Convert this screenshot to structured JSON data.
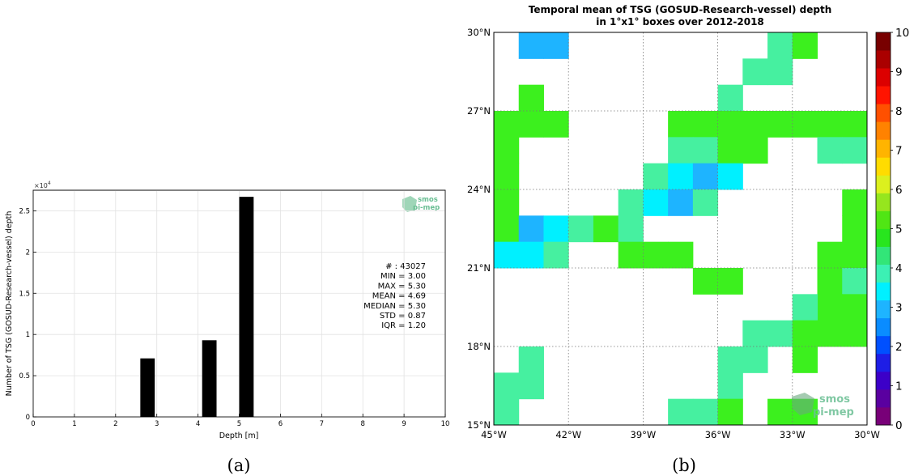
{
  "caption_a": "(a)",
  "caption_b": "(b)",
  "logo": {
    "line1": "smos",
    "line2": "pi-mep"
  },
  "chart_data": [
    {
      "type": "bar",
      "title": "",
      "xlabel": "Depth [m]",
      "ylabel": "Number of TSG (GOSUD-Research-vessel) depth",
      "y_exponent_label": "×10",
      "y_exponent": "4",
      "xlim": [
        0,
        10
      ],
      "ylim": [
        0,
        2.75
      ],
      "x_ticks": [
        "0",
        "1",
        "2",
        "3",
        "4",
        "5",
        "6",
        "7",
        "8",
        "9",
        "10"
      ],
      "y_ticks": [
        "0",
        "0.5",
        "1",
        "1.5",
        "2",
        "2.5"
      ],
      "grid": true,
      "bar_color": "#000000",
      "bars": [
        {
          "x_left": 2.6,
          "x_right": 2.95,
          "value": 0.71
        },
        {
          "x_left": 4.1,
          "x_right": 4.45,
          "value": 0.93
        },
        {
          "x_left": 5.0,
          "x_right": 5.35,
          "value": 2.67
        }
      ],
      "stats": [
        "# : 43027",
        "MIN = 3.00",
        "MAX =  5.30",
        "MEAN = 4.69",
        "MEDIAN = 5.30",
        "STD = 0.87",
        "IQR = 1.20"
      ]
    },
    {
      "type": "heatmap",
      "title": "Temporal mean of TSG (GOSUD-Research-vessel) depth",
      "subtitle": "in 1°x1° boxes over 2012-2018",
      "lon_range": [
        -45,
        -30
      ],
      "lat_range": [
        15,
        30
      ],
      "x_ticks": [
        "45°W",
        "42°W",
        "39°W",
        "36°W",
        "33°W",
        "30°W"
      ],
      "y_ticks": [
        "15°N",
        "18°N",
        "21°N",
        "24°N",
        "27°N",
        "30°N"
      ],
      "grid": "dotted",
      "colorbar": {
        "range": [
          0,
          10
        ],
        "ticks": [
          "0",
          "1",
          "2",
          "3",
          "4",
          "5",
          "6",
          "7",
          "8",
          "9",
          "10"
        ],
        "colors": [
          "#780078",
          "#5a00a0",
          "#3c00c8",
          "#1e1ee6",
          "#0050ff",
          "#0a8cff",
          "#1eb4ff",
          "#00f0ff",
          "#3cf0b4",
          "#32e678",
          "#28e61e",
          "#50e614",
          "#96e61e",
          "#dcf01e",
          "#ffdc00",
          "#ffb400",
          "#ff8200",
          "#ff5000",
          "#ff1400",
          "#dc0000",
          "#aa0000",
          "#780000"
        ]
      },
      "color_classes": {
        "a": "#46f0a0",
        "g": "#3cf01e",
        "c": "#00f0ff",
        "b": "#1eb4ff"
      },
      "cells": [
        {
          "lon": -44,
          "lat": 29,
          "c": "b"
        },
        {
          "lon": -43,
          "lat": 29,
          "c": "b"
        },
        {
          "lon": -34,
          "lat": 29,
          "c": "a"
        },
        {
          "lon": -33,
          "lat": 29,
          "c": "g"
        },
        {
          "lon": -35,
          "lat": 28,
          "c": "a"
        },
        {
          "lon": -34,
          "lat": 28,
          "c": "a"
        },
        {
          "lon": -44,
          "lat": 27,
          "c": "g"
        },
        {
          "lon": -36,
          "lat": 27,
          "c": "a"
        },
        {
          "lon": -45,
          "lat": 26,
          "c": "g"
        },
        {
          "lon": -44,
          "lat": 26,
          "c": "g"
        },
        {
          "lon": -43,
          "lat": 26,
          "c": "g"
        },
        {
          "lon": -38,
          "lat": 26,
          "c": "g"
        },
        {
          "lon": -37,
          "lat": 26,
          "c": "g"
        },
        {
          "lon": -36,
          "lat": 26,
          "c": "g"
        },
        {
          "lon": -35,
          "lat": 26,
          "c": "g"
        },
        {
          "lon": -34,
          "lat": 26,
          "c": "g"
        },
        {
          "lon": -33,
          "lat": 26,
          "c": "g"
        },
        {
          "lon": -32,
          "lat": 26,
          "c": "g"
        },
        {
          "lon": -31,
          "lat": 26,
          "c": "g"
        },
        {
          "lon": -45,
          "lat": 25,
          "c": "g"
        },
        {
          "lon": -38,
          "lat": 25,
          "c": "a"
        },
        {
          "lon": -37,
          "lat": 25,
          "c": "a"
        },
        {
          "lon": -36,
          "lat": 25,
          "c": "g"
        },
        {
          "lon": -35,
          "lat": 25,
          "c": "g"
        },
        {
          "lon": -32,
          "lat": 25,
          "c": "a"
        },
        {
          "lon": -31,
          "lat": 25,
          "c": "a"
        },
        {
          "lon": -45,
          "lat": 24,
          "c": "g"
        },
        {
          "lon": -39,
          "lat": 24,
          "c": "a"
        },
        {
          "lon": -38,
          "lat": 24,
          "c": "c"
        },
        {
          "lon": -37,
          "lat": 24,
          "c": "b"
        },
        {
          "lon": -36,
          "lat": 24,
          "c": "c"
        },
        {
          "lon": -45,
          "lat": 23,
          "c": "g"
        },
        {
          "lon": -40,
          "lat": 23,
          "c": "a"
        },
        {
          "lon": -39,
          "lat": 23,
          "c": "c"
        },
        {
          "lon": -38,
          "lat": 23,
          "c": "b"
        },
        {
          "lon": -37,
          "lat": 23,
          "c": "a"
        },
        {
          "lon": -31,
          "lat": 23,
          "c": "g"
        },
        {
          "lon": -45,
          "lat": 22,
          "c": "g"
        },
        {
          "lon": -44,
          "lat": 22,
          "c": "b"
        },
        {
          "lon": -43,
          "lat": 22,
          "c": "c"
        },
        {
          "lon": -42,
          "lat": 22,
          "c": "a"
        },
        {
          "lon": -41,
          "lat": 22,
          "c": "g"
        },
        {
          "lon": -40,
          "lat": 22,
          "c": "a"
        },
        {
          "lon": -31,
          "lat": 22,
          "c": "g"
        },
        {
          "lon": -45,
          "lat": 21,
          "c": "c"
        },
        {
          "lon": -44,
          "lat": 21,
          "c": "c"
        },
        {
          "lon": -43,
          "lat": 21,
          "c": "a"
        },
        {
          "lon": -40,
          "lat": 21,
          "c": "g"
        },
        {
          "lon": -39,
          "lat": 21,
          "c": "g"
        },
        {
          "lon": -38,
          "lat": 21,
          "c": "g"
        },
        {
          "lon": -32,
          "lat": 21,
          "c": "g"
        },
        {
          "lon": -31,
          "lat": 21,
          "c": "g"
        },
        {
          "lon": -37,
          "lat": 20,
          "c": "g"
        },
        {
          "lon": -36,
          "lat": 20,
          "c": "g"
        },
        {
          "lon": -32,
          "lat": 20,
          "c": "g"
        },
        {
          "lon": -31,
          "lat": 20,
          "c": "a"
        },
        {
          "lon": -32,
          "lat": 19,
          "c": "g"
        },
        {
          "lon": -31,
          "lat": 19,
          "c": "g"
        },
        {
          "lon": -33,
          "lat": 19,
          "c": "a"
        },
        {
          "lon": -35,
          "lat": 18,
          "c": "a"
        },
        {
          "lon": -34,
          "lat": 18,
          "c": "a"
        },
        {
          "lon": -33,
          "lat": 18,
          "c": "g"
        },
        {
          "lon": -32,
          "lat": 18,
          "c": "g"
        },
        {
          "lon": -31,
          "lat": 18,
          "c": "g"
        },
        {
          "lon": -44,
          "lat": 17,
          "c": "a"
        },
        {
          "lon": -36,
          "lat": 17,
          "c": "a"
        },
        {
          "lon": -35,
          "lat": 17,
          "c": "a"
        },
        {
          "lon": -33,
          "lat": 17,
          "c": "g"
        },
        {
          "lon": -45,
          "lat": 16,
          "c": "a"
        },
        {
          "lon": -44,
          "lat": 16,
          "c": "a"
        },
        {
          "lon": -36,
          "lat": 16,
          "c": "a"
        },
        {
          "lon": -45,
          "lat": 15,
          "c": "a"
        },
        {
          "lon": -38,
          "lat": 15,
          "c": "a"
        },
        {
          "lon": -37,
          "lat": 15,
          "c": "a"
        },
        {
          "lon": -36,
          "lat": 15,
          "c": "g"
        },
        {
          "lon": -34,
          "lat": 15,
          "c": "g"
        },
        {
          "lon": -33,
          "lat": 15,
          "c": "g"
        }
      ]
    }
  ]
}
